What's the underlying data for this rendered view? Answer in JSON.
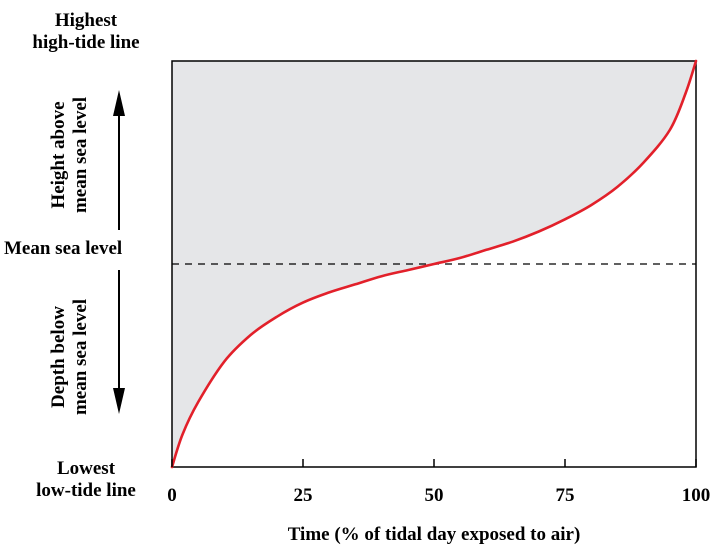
{
  "chart_data": {
    "type": "area",
    "title": "",
    "xlabel": "Time (% of tidal day exposed to air)",
    "ylabel": "",
    "xlim": [
      0,
      100
    ],
    "ylim": [
      0,
      1
    ],
    "x_ticks": [
      "0",
      "25",
      "50",
      "75",
      "100"
    ],
    "y_levels": {
      "top": "Highest high-tide line",
      "middle": "Mean sea level",
      "bottom": "Lowest low-tide line"
    },
    "y_region_labels": {
      "above": "Height above mean sea level",
      "below": "Depth below mean sea level"
    },
    "series": [
      {
        "x": [
          0,
          2,
          5,
          10,
          15,
          20,
          25,
          30,
          35,
          40,
          45,
          50,
          55,
          60,
          65,
          70,
          75,
          80,
          85,
          90,
          95,
          98,
          100
        ],
        "y": [
          0,
          0.08,
          0.16,
          0.26,
          0.325,
          0.37,
          0.405,
          0.43,
          0.45,
          0.47,
          0.485,
          0.5,
          0.515,
          0.535,
          0.555,
          0.58,
          0.61,
          0.645,
          0.69,
          0.75,
          0.83,
          0.92,
          1.0
        ]
      }
    ],
    "mean_level": 0.5,
    "colors": {
      "curve": "#e2202a",
      "fill": "#e5e6e8",
      "axis": "#000000"
    },
    "grid": false
  },
  "labels": {
    "highest_line1": "Highest",
    "highest_line2": "high-tide line",
    "mean": "Mean sea level",
    "lowest_line1": "Lowest",
    "lowest_line2": "low-tide line",
    "height_line1": "Height above",
    "height_line2": "mean sea level",
    "depth_line1": "Depth below",
    "depth_line2": "mean sea level"
  }
}
